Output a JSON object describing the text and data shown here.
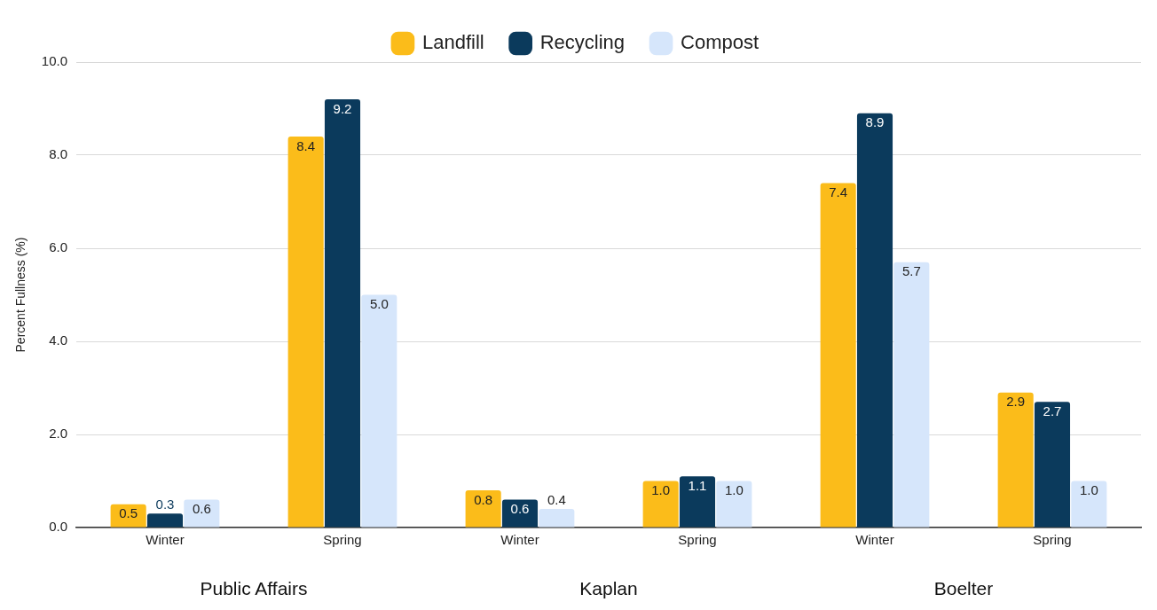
{
  "chart_data": {
    "type": "bar",
    "ylabel": "Percent Fullness (%)",
    "categories": [
      "Winter",
      "Spring",
      "Winter",
      "Spring",
      "Winter",
      "Spring"
    ],
    "series": [
      {
        "name": "Landfill",
        "color": "#fbbc1a",
        "values": [
          0.5,
          8.4,
          0.8,
          1.0,
          7.4,
          2.9
        ],
        "value_labels": [
          "0.5",
          "8.4",
          "0.8",
          "1.0",
          "7.4",
          "2.9"
        ]
      },
      {
        "name": "Recycling",
        "color": "#0b3a5c",
        "values": [
          0.3,
          9.2,
          0.6,
          1.1,
          8.9,
          2.7
        ],
        "value_labels": [
          "0.3",
          "9.2",
          "0.6",
          "1.1",
          "8.9",
          "2.7"
        ]
      },
      {
        "name": "Compost",
        "color": "#d6e6fb",
        "values": [
          0.6,
          5.0,
          0.4,
          1.0,
          5.7,
          1.0
        ],
        "value_labels": [
          "0.6",
          "5.0",
          "0.4",
          "1.0",
          "5.7",
          "1.0"
        ]
      }
    ],
    "annotations": [
      "Public Affairs",
      "Kaplan",
      "Boelter"
    ],
    "ylim": [
      0,
      10
    ],
    "yticks": [
      {
        "value": 0,
        "label": "0.0"
      },
      {
        "value": 2,
        "label": "2.0"
      },
      {
        "value": 4,
        "label": "4.0"
      },
      {
        "value": 6,
        "label": "6.0"
      },
      {
        "value": 8,
        "label": "8.0"
      },
      {
        "value": 10,
        "label": "10.0"
      }
    ],
    "grid": "y",
    "legend": "top"
  }
}
